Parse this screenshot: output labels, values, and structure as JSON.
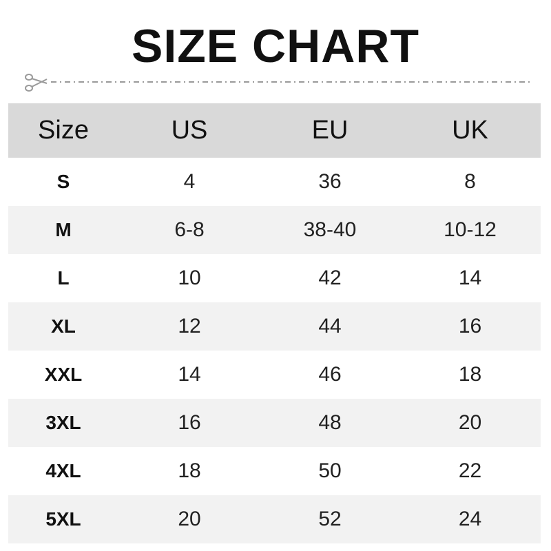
{
  "title": "SIZE CHART",
  "icons": {
    "cut_line": "scissors-icon"
  },
  "colors": {
    "header_bg": "#d9d9d9",
    "alt_row_bg": "#f2f2f2",
    "dash": "#999999"
  },
  "table": {
    "headers": [
      "Size",
      "US",
      "EU",
      "UK"
    ],
    "rows": [
      [
        "S",
        "4",
        "36",
        "8"
      ],
      [
        "M",
        "6-8",
        "38-40",
        "10-12"
      ],
      [
        "L",
        "10",
        "42",
        "14"
      ],
      [
        "XL",
        "12",
        "44",
        "16"
      ],
      [
        "XXL",
        "14",
        "46",
        "18"
      ],
      [
        "3XL",
        "16",
        "48",
        "20"
      ],
      [
        "4XL",
        "18",
        "50",
        "22"
      ],
      [
        "5XL",
        "20",
        "52",
        "24"
      ]
    ]
  }
}
